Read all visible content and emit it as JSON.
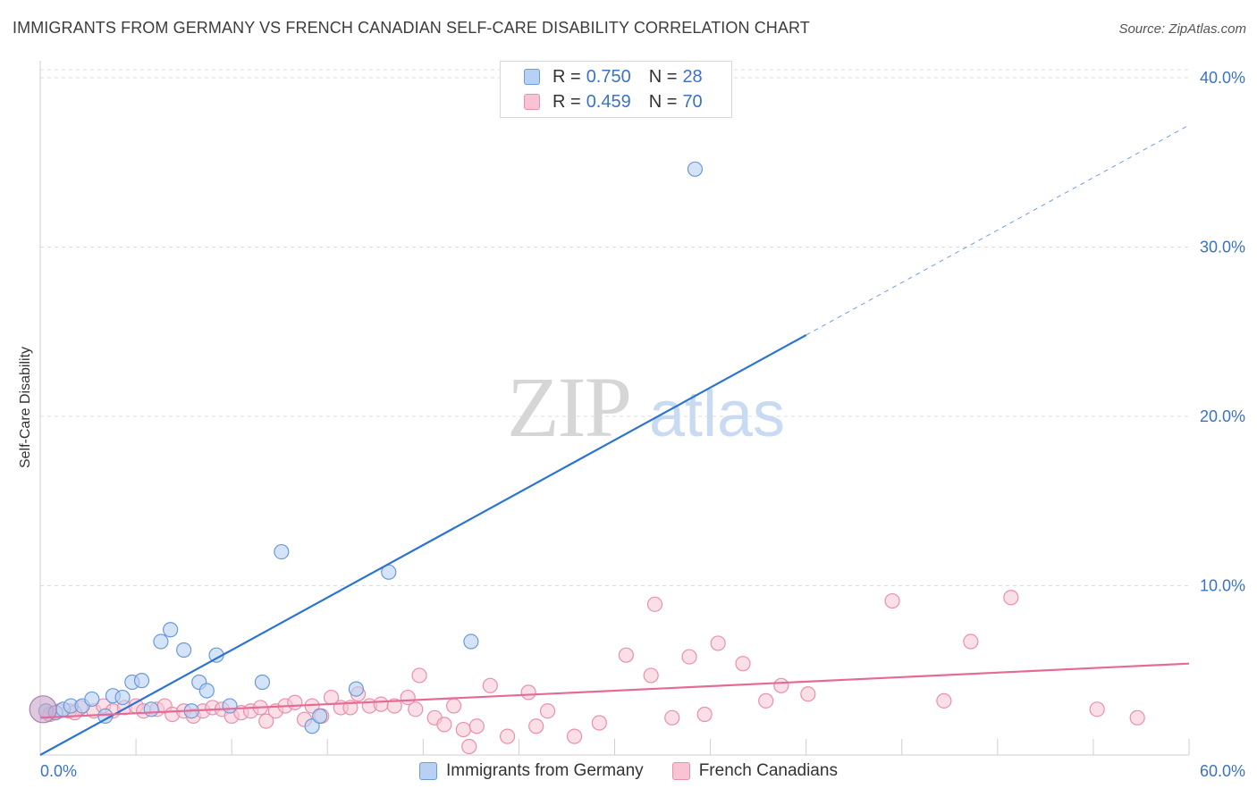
{
  "header": {
    "title": "IMMIGRANTS FROM GERMANY VS FRENCH CANADIAN SELF-CARE DISABILITY CORRELATION CHART",
    "source": "Source: ZipAtlas.com"
  },
  "watermark": {
    "zip": "ZIP",
    "atlas": "atlas"
  },
  "legend": {
    "rows": [
      {
        "r_label": "R =",
        "r_value": "0.750",
        "n_label": "N =",
        "n_value": "28"
      },
      {
        "r_label": "R =",
        "r_value": "0.459",
        "n_label": "N =",
        "n_value": "70"
      }
    ]
  },
  "colors": {
    "blue_fill": "#b7d0f3",
    "blue_stroke": "#6a9ad8",
    "blue_line": "#2d74d2",
    "pink_fill": "#f8c4d3",
    "pink_stroke": "#ea8fab",
    "pink_line": "#e56b95",
    "tick_text": "#3a73c6",
    "grid": "#dcdcdc"
  },
  "chart_data": {
    "type": "scatter",
    "title": "IMMIGRANTS FROM GERMANY VS FRENCH CANADIAN SELF-CARE DISABILITY CORRELATION CHART",
    "xlabel": "",
    "ylabel": "Self-Care Disability",
    "xlim": [
      0,
      60
    ],
    "ylim": [
      0,
      41
    ],
    "x_tick_labels": [
      "0.0%",
      "60.0%"
    ],
    "y_ticks": [
      10,
      20,
      30,
      40
    ],
    "y_tick_labels": [
      "10.0%",
      "20.0%",
      "30.0%",
      "40.0%"
    ],
    "grid": true,
    "legend_position": "bottom",
    "series": [
      {
        "name": "Immigrants from Germany",
        "color": "#b7d0f3",
        "points": [
          [
            0.3,
            2.6
          ],
          [
            0.8,
            2.5
          ],
          [
            1.2,
            2.7
          ],
          [
            1.6,
            2.9
          ],
          [
            2.2,
            2.9
          ],
          [
            2.7,
            3.3
          ],
          [
            3.4,
            2.3
          ],
          [
            3.8,
            3.5
          ],
          [
            4.3,
            3.4
          ],
          [
            4.8,
            4.3
          ],
          [
            5.3,
            4.4
          ],
          [
            5.8,
            2.7
          ],
          [
            6.3,
            6.7
          ],
          [
            6.8,
            7.4
          ],
          [
            7.5,
            6.2
          ],
          [
            7.9,
            2.6
          ],
          [
            8.3,
            4.3
          ],
          [
            8.7,
            3.8
          ],
          [
            9.2,
            5.9
          ],
          [
            9.9,
            2.9
          ],
          [
            11.6,
            4.3
          ],
          [
            12.6,
            12.0
          ],
          [
            14.2,
            1.7
          ],
          [
            14.6,
            2.3
          ],
          [
            16.5,
            3.9
          ],
          [
            18.2,
            10.8
          ],
          [
            22.5,
            6.7
          ],
          [
            34.2,
            34.6
          ]
        ],
        "trend": {
          "x0": 0,
          "y0": 0,
          "x1": 40,
          "y1": 24.8,
          "dash_to_x": 60,
          "dash_to_y": 37.2
        }
      },
      {
        "name": "French Canadians",
        "color": "#f8c4d3",
        "points": [
          [
            0.5,
            2.4
          ],
          [
            1.0,
            2.6
          ],
          [
            1.5,
            2.6
          ],
          [
            2.1,
            2.8
          ],
          [
            2.8,
            2.6
          ],
          [
            3.3,
            2.9
          ],
          [
            3.8,
            2.6
          ],
          [
            4.4,
            2.8
          ],
          [
            5.0,
            2.9
          ],
          [
            5.4,
            2.6
          ],
          [
            6.1,
            2.7
          ],
          [
            6.5,
            2.9
          ],
          [
            6.9,
            2.4
          ],
          [
            7.5,
            2.6
          ],
          [
            8.0,
            2.3
          ],
          [
            8.5,
            2.6
          ],
          [
            9.0,
            2.8
          ],
          [
            9.5,
            2.7
          ],
          [
            10.0,
            2.3
          ],
          [
            10.5,
            2.5
          ],
          [
            11.0,
            2.6
          ],
          [
            11.5,
            2.8
          ],
          [
            11.8,
            2.0
          ],
          [
            12.3,
            2.6
          ],
          [
            12.8,
            2.9
          ],
          [
            13.3,
            3.1
          ],
          [
            13.8,
            2.1
          ],
          [
            14.2,
            2.9
          ],
          [
            14.7,
            2.3
          ],
          [
            15.2,
            3.4
          ],
          [
            15.7,
            2.8
          ],
          [
            16.2,
            2.8
          ],
          [
            16.6,
            3.6
          ],
          [
            17.2,
            2.9
          ],
          [
            17.8,
            3.0
          ],
          [
            18.5,
            2.9
          ],
          [
            19.2,
            3.4
          ],
          [
            19.6,
            2.7
          ],
          [
            19.8,
            4.7
          ],
          [
            20.6,
            2.2
          ],
          [
            21.1,
            1.8
          ],
          [
            21.6,
            2.9
          ],
          [
            22.1,
            1.5
          ],
          [
            22.4,
            0.5
          ],
          [
            22.8,
            1.7
          ],
          [
            23.5,
            4.1
          ],
          [
            24.4,
            1.1
          ],
          [
            25.5,
            3.7
          ],
          [
            25.9,
            1.7
          ],
          [
            26.5,
            2.6
          ],
          [
            27.9,
            1.1
          ],
          [
            29.2,
            1.9
          ],
          [
            30.6,
            5.9
          ],
          [
            31.9,
            4.7
          ],
          [
            32.1,
            8.9
          ],
          [
            33.0,
            2.2
          ],
          [
            33.9,
            5.8
          ],
          [
            34.7,
            2.4
          ],
          [
            35.4,
            6.6
          ],
          [
            36.7,
            5.4
          ],
          [
            37.9,
            3.2
          ],
          [
            38.7,
            4.1
          ],
          [
            40.1,
            3.6
          ],
          [
            44.5,
            9.1
          ],
          [
            47.2,
            3.2
          ],
          [
            48.6,
            6.7
          ],
          [
            50.7,
            9.3
          ],
          [
            55.2,
            2.7
          ],
          [
            57.3,
            2.2
          ],
          [
            1.8,
            2.5
          ]
        ],
        "trend": {
          "x0": 0,
          "y0": 2.2,
          "x1": 60,
          "y1": 5.4
        }
      }
    ]
  }
}
